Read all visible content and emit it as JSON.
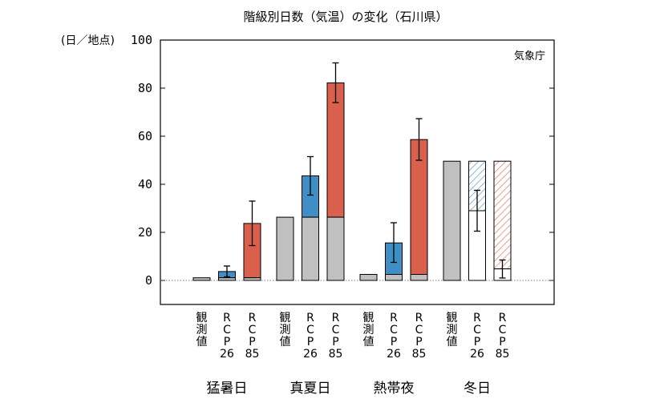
{
  "chart_data": {
    "type": "bar",
    "title": "階級別日数（気温）の変化（石川県）",
    "ylabel": "(日／地点)",
    "credit": "気象庁",
    "ylim": [
      -10,
      100
    ],
    "yticks": [
      0,
      20,
      40,
      60,
      80,
      100
    ],
    "groups": [
      {
        "label": "猛暑日",
        "bars": [
          {
            "label": [
              "観",
              "測",
              "値"
            ],
            "kind": "observed",
            "value": 1.1
          },
          {
            "label": [
              "R",
              "C",
              "P",
              "26"
            ],
            "kind": "rcp26",
            "base": 1.1,
            "value": 3.7,
            "err": [
              1.5,
              6.0
            ]
          },
          {
            "label": [
              "R",
              "C",
              "P",
              "85"
            ],
            "kind": "rcp85",
            "base": 1.1,
            "value": 23.7,
            "err": [
              14.5,
              33.0
            ]
          }
        ]
      },
      {
        "label": "真夏日",
        "bars": [
          {
            "label": [
              "観",
              "測",
              "値"
            ],
            "kind": "observed",
            "value": 26.3
          },
          {
            "label": [
              "R",
              "C",
              "P",
              "26"
            ],
            "kind": "rcp26",
            "base": 26.3,
            "value": 43.5,
            "err": [
              35.5,
              51.5
            ]
          },
          {
            "label": [
              "R",
              "C",
              "P",
              "85"
            ],
            "kind": "rcp85",
            "base": 26.3,
            "value": 82.2,
            "err": [
              74.0,
              90.5
            ]
          }
        ]
      },
      {
        "label": "熱帯夜",
        "bars": [
          {
            "label": [
              "観",
              "測",
              "値"
            ],
            "kind": "observed",
            "value": 2.5
          },
          {
            "label": [
              "R",
              "C",
              "P",
              "26"
            ],
            "kind": "rcp26",
            "base": 2.5,
            "value": 15.6,
            "err": [
              7.5,
              24.0
            ]
          },
          {
            "label": [
              "R",
              "C",
              "P",
              "85"
            ],
            "kind": "rcp85",
            "base": 2.5,
            "value": 58.6,
            "err": [
              50.0,
              67.3
            ]
          }
        ]
      },
      {
        "label": "冬日",
        "bars": [
          {
            "label": [
              "観",
              "測",
              "値"
            ],
            "kind": "observed",
            "value": 49.6
          },
          {
            "label": [
              "R",
              "C",
              "P",
              "26"
            ],
            "kind": "rcp26-decrease",
            "base": 49.6,
            "value": 29.0,
            "err": [
              20.5,
              37.5
            ]
          },
          {
            "label": [
              "R",
              "C",
              "P",
              "85"
            ],
            "kind": "rcp85-decrease",
            "base": 49.6,
            "value": 4.8,
            "err": [
              1.0,
              8.5
            ]
          }
        ]
      }
    ],
    "colors": {
      "observed": "#c0c0c0",
      "rcp26": "#3f8fc6",
      "rcp85": "#d9604c",
      "hatch26": "#6ea3c2",
      "hatch85": "#e07d6e"
    }
  }
}
